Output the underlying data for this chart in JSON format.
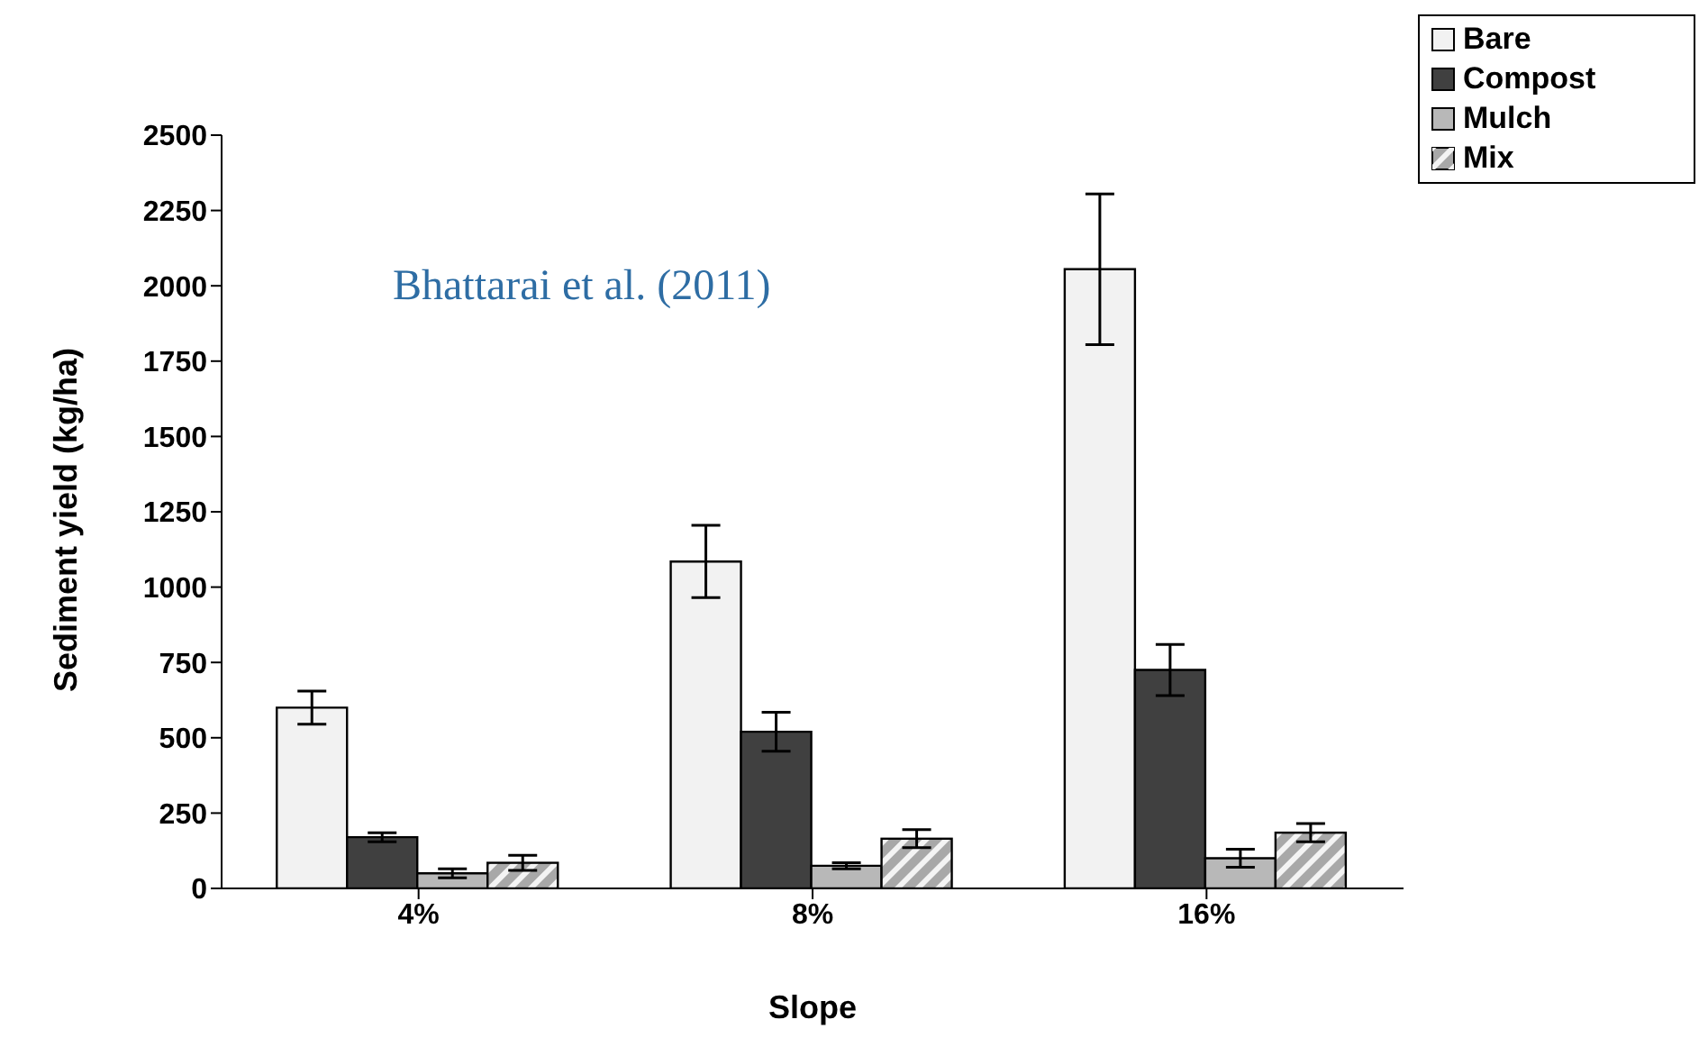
{
  "chart_data": {
    "type": "bar",
    "xlabel": "Slope",
    "ylabel": "Sediment yield (kg/ha)",
    "categories": [
      "4%",
      "8%",
      "16%"
    ],
    "series": [
      {
        "name": "Bare",
        "color": "#f2f2f2",
        "values": [
          600,
          1085,
          2055
        ],
        "errors": [
          55,
          120,
          250
        ]
      },
      {
        "name": "Compost",
        "color": "#404040",
        "values": [
          170,
          520,
          725
        ],
        "errors": [
          15,
          65,
          85
        ]
      },
      {
        "name": "Mulch",
        "color": "#b8b8b8",
        "values": [
          50,
          75,
          100
        ],
        "errors": [
          15,
          10,
          30
        ]
      },
      {
        "name": "Mix",
        "color": "#a8a8a8",
        "values": [
          85,
          165,
          185
        ],
        "errors": [
          25,
          30,
          30
        ]
      }
    ],
    "ylim": [
      0,
      2500
    ],
    "yticks": [
      0,
      250,
      500,
      750,
      1000,
      1250,
      1500,
      1750,
      2000,
      2250,
      2500
    ],
    "grid": false,
    "legend": "top right",
    "annotations": [
      "Bhattarai et al. (2011)"
    ]
  }
}
